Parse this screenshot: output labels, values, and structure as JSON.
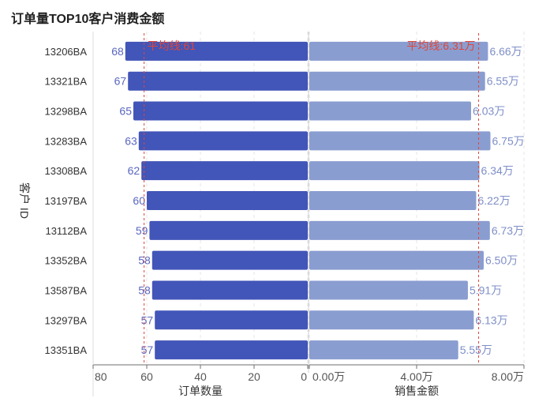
{
  "title": "订单量TOP10客户消费金额",
  "chart_data": {
    "type": "bar",
    "title": "订单量TOP10客户消费金额",
    "ylabel": "客户 ID",
    "categories": [
      "13206BA",
      "13321BA",
      "13298BA",
      "13283BA",
      "13308BA",
      "13197BA",
      "13112BA",
      "13352BA",
      "13587BA",
      "13297BA",
      "13351BA"
    ],
    "left": {
      "name": "订单数量",
      "xlabel": "订单数量",
      "values": [
        68,
        67,
        65,
        63,
        62,
        60,
        59,
        58,
        58,
        57,
        57
      ],
      "labels": [
        "68",
        "67",
        "65",
        "63",
        "62",
        "60",
        "59",
        "58",
        "58",
        "57",
        "57"
      ],
      "xlim": [
        0,
        80
      ],
      "ticks": [
        "80",
        "60",
        "40",
        "20",
        "0"
      ],
      "mean": 61,
      "mean_label": "平均线:61",
      "color": "#4255b8"
    },
    "right": {
      "name": "销售金额",
      "xlabel": "销售金额",
      "values": [
        66600,
        65500,
        60300,
        67500,
        63400,
        62200,
        67300,
        65000,
        59100,
        61300,
        55500
      ],
      "labels": [
        "6.66万",
        "6.55万",
        "6.03万",
        "6.75万",
        "6.34万",
        "6.22万",
        "6.73万",
        "6.50万",
        "5.91万",
        "6.13万",
        "5.55万"
      ],
      "xlim": [
        0,
        80000
      ],
      "ticks": [
        "0.00万",
        "4.00万",
        "8.00万"
      ],
      "mean": 63100,
      "mean_label": "平均线:6.31万",
      "color": "#8a9dd0"
    }
  }
}
